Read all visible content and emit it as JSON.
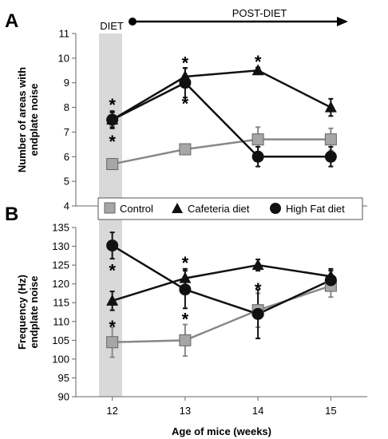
{
  "colors": {
    "control": "#888888",
    "control_fill": "#a6a6a6",
    "cafeteria": "#111111",
    "highfat": "#111111",
    "diet_band": "#d9d9d9",
    "axis": "#666666"
  },
  "annotations": {
    "diet_label": "DIET",
    "post_diet_label": "POST-DIET",
    "star": "*"
  },
  "legend": {
    "items": [
      {
        "label": "Control",
        "marker": "square"
      },
      {
        "label": "Cafeteria diet",
        "marker": "triangle"
      },
      {
        "label": "High Fat diet",
        "marker": "circle"
      }
    ]
  },
  "chart_data": [
    {
      "panel": "A",
      "type": "line",
      "ylabel": "Number of areas with endplate noise",
      "ylim": [
        4,
        11
      ],
      "yticks": [
        4,
        5,
        6,
        7,
        8,
        9,
        10,
        11
      ],
      "x": [
        12,
        13,
        14,
        15
      ],
      "xlim": [
        11.5,
        15.5
      ],
      "series": [
        {
          "name": "Control",
          "marker": "square",
          "values": [
            5.7,
            6.3,
            6.7,
            6.7
          ],
          "err": [
            0.1,
            0.15,
            0.5,
            0.45
          ]
        },
        {
          "name": "Cafeteria diet",
          "marker": "triangle",
          "values": [
            7.5,
            9.25,
            9.5,
            8.0
          ],
          "err": [
            0.3,
            0.35,
            0.12,
            0.35
          ]
        },
        {
          "name": "High Fat diet",
          "marker": "circle",
          "values": [
            7.5,
            9.0,
            6.0,
            6.0
          ],
          "err": [
            0.35,
            0.6,
            0.4,
            0.4
          ]
        }
      ],
      "stars": [
        {
          "x": 12,
          "y": 8.25
        },
        {
          "x": 12,
          "y": 6.75
        },
        {
          "x": 13,
          "y": 9.95
        },
        {
          "x": 13,
          "y": 8.3
        },
        {
          "x": 14,
          "y": 10.0
        }
      ]
    },
    {
      "panel": "B",
      "type": "line",
      "ylabel": "Frequency (Hz) endplate noise",
      "xlabel": "Age of mice (weeks)",
      "ylim": [
        90,
        135
      ],
      "yticks": [
        90,
        95,
        100,
        105,
        110,
        115,
        120,
        125,
        130,
        135
      ],
      "x": [
        12,
        13,
        14,
        15
      ],
      "xlim": [
        11.5,
        15.5
      ],
      "series": [
        {
          "name": "Control",
          "marker": "square",
          "values": [
            104.5,
            105,
            113,
            119.5
          ],
          "err": [
            4,
            4.2,
            4.5,
            3
          ]
        },
        {
          "name": "Cafeteria diet",
          "marker": "triangle",
          "values": [
            115.5,
            121.5,
            125,
            122
          ],
          "err": [
            2.5,
            2.5,
            1.5,
            2
          ]
        },
        {
          "name": "High Fat diet",
          "marker": "circle",
          "values": [
            130.2,
            118.5,
            112,
            121
          ],
          "err": [
            3.5,
            5,
            6.5,
            2.5
          ]
        }
      ],
      "stars": [
        {
          "x": 12,
          "y": 124.5
        },
        {
          "x": 12,
          "y": 109.5
        },
        {
          "x": 13,
          "y": 126.5
        },
        {
          "x": 13,
          "y": 111.5
        },
        {
          "x": 14,
          "y": 119.5
        }
      ]
    }
  ]
}
